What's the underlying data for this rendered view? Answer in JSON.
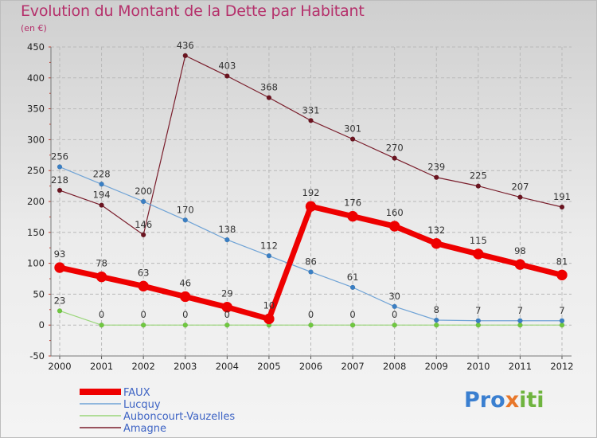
{
  "header": {
    "title": "Evolution du Montant de la Dette par Habitant",
    "unit": "(en €)"
  },
  "logo": {
    "text": "Proxiti",
    "letters": [
      "P",
      "r",
      "o",
      "x",
      "i",
      "t",
      "i"
    ],
    "colors": [
      "#3a7fd0",
      "#3a7fd0",
      "#3a7fd0",
      "#e8772a",
      "#6fb43f",
      "#6fb43f",
      "#6fb43f"
    ]
  },
  "chart_data": {
    "type": "line",
    "title": "Evolution du Montant de la Dette par Habitant",
    "ylabel": "(en €)",
    "xlabel": "",
    "ylim": [
      -50,
      450
    ],
    "yticks": [
      -50,
      0,
      50,
      100,
      150,
      200,
      250,
      300,
      350,
      400,
      450
    ],
    "x": [
      "2000",
      "2001",
      "2002",
      "2003",
      "2004",
      "2005",
      "2006",
      "2007",
      "2008",
      "2009",
      "2010",
      "2011",
      "2012"
    ],
    "grid": true,
    "legend_position": "bottom-left",
    "series": [
      {
        "name": "Amagne",
        "color": "#7a1e2c",
        "dot": "#6b1420",
        "width": 1.2,
        "radius": 3,
        "values": [
          218,
          194,
          146,
          436,
          403,
          368,
          331,
          301,
          270,
          239,
          225,
          207,
          191
        ]
      },
      {
        "name": "Auboncourt-Vauzelles",
        "color": "#9ad67a",
        "dot": "#6fc83f",
        "width": 1.2,
        "radius": 3,
        "values": [
          23,
          0,
          0,
          0,
          0,
          0,
          0,
          0,
          0,
          0,
          0,
          0,
          0
        ]
      },
      {
        "name": "Lucquy",
        "color": "#6fa3d6",
        "dot": "#3a7fc4",
        "width": 1.2,
        "radius": 3,
        "values": [
          256,
          228,
          200,
          170,
          138,
          112,
          86,
          61,
          30,
          8,
          7,
          7,
          7
        ]
      },
      {
        "name": "FAUX",
        "color": "#ee0000",
        "dot": "#ee0000",
        "width": 7,
        "radius": 6.5,
        "values": [
          93,
          78,
          63,
          46,
          29,
          10,
          192,
          176,
          160,
          132,
          115,
          98,
          81
        ]
      }
    ],
    "labels": [
      {
        "series": "Amagne",
        "texts": [
          "218",
          "194",
          "146",
          "436",
          "403",
          "368",
          "331",
          "301",
          "270",
          "239",
          "225",
          "207",
          "191"
        ]
      },
      {
        "series": "Auboncourt-Vauzelles",
        "texts": [
          "23",
          "0",
          "0",
          "0",
          "0",
          "",
          "0",
          "0",
          "0",
          "",
          "",
          "",
          ""
        ]
      },
      {
        "series": "Lucquy",
        "texts": [
          "256",
          "228",
          "200",
          "170",
          "138",
          "112",
          "86",
          "61",
          "30",
          "8",
          "7",
          "7",
          "7"
        ]
      },
      {
        "series": "FAUX",
        "texts": [
          "93",
          "78",
          "63",
          "46",
          "29",
          "10",
          "192",
          "176",
          "160",
          "132",
          "115",
          "98",
          "81"
        ]
      }
    ],
    "legend": [
      "FAUX",
      "Lucquy",
      "Auboncourt-Vauzelles",
      "Amagne"
    ]
  }
}
